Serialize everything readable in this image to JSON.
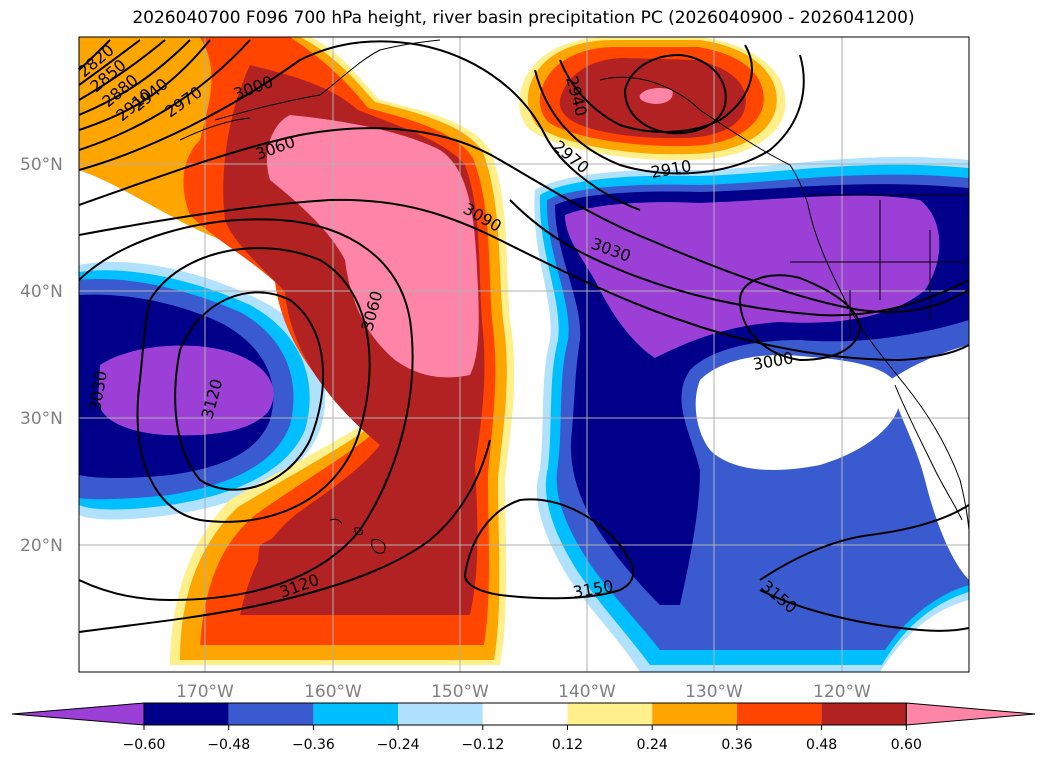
{
  "title": "2026040700 F096 700 hPa height, river basin precipitation PC (2026040900 - 2026041200)",
  "map": {
    "lat_labels": [
      "50°N",
      "40°N",
      "30°N",
      "20°N"
    ],
    "lon_labels": [
      "170°W",
      "160°W",
      "150°W",
      "140°W",
      "130°W",
      "120°W"
    ],
    "contour_labels": [
      "2820",
      "2850",
      "2880",
      "2910",
      "2940",
      "2970",
      "3000",
      "3060",
      "3090",
      "2940",
      "2970",
      "2910",
      "3030",
      "3060",
      "3000",
      "3120",
      "3030",
      "3120",
      "3150",
      "3150"
    ]
  },
  "colors": {
    "neg_060": "#9b3fd6",
    "neg_048": "#00008b",
    "neg_036": "#3a5bd0",
    "neg_024": "#00bfff",
    "neg_012": "#b0e2ff",
    "zero": "#ffffff",
    "pos_012": "#fff08c",
    "pos_024": "#ffa500",
    "pos_036": "#ff4500",
    "pos_048": "#b22222",
    "pos_060": "#ff85a8"
  },
  "colorbar": {
    "ticks": [
      "−0.60",
      "−0.48",
      "−0.36",
      "−0.24",
      "−0.12",
      "0.12",
      "0.24",
      "0.36",
      "0.48",
      "0.60"
    ]
  }
}
